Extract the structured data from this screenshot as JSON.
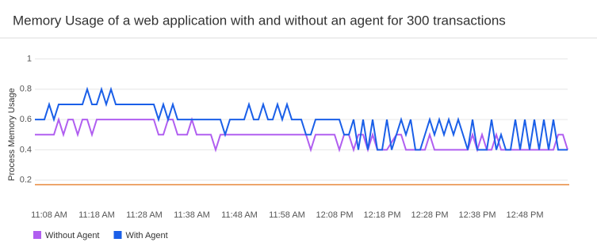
{
  "chart_data": {
    "type": "line",
    "title": "Memory Usage of a web application with and without an agent for 300 transactions",
    "y_label": "Process Memory Usage",
    "x": [
      "11:05 AM",
      "11:06 AM",
      "11:07 AM",
      "11:08 AM",
      "11:09 AM",
      "11:10 AM",
      "11:11 AM",
      "11:12 AM",
      "11:13 AM",
      "11:14 AM",
      "11:15 AM",
      "11:16 AM",
      "11:17 AM",
      "11:18 AM",
      "11:19 AM",
      "11:20 AM",
      "11:21 AM",
      "11:22 AM",
      "11:23 AM",
      "11:24 AM",
      "11:25 AM",
      "11:26 AM",
      "11:27 AM",
      "11:28 AM",
      "11:29 AM",
      "11:30 AM",
      "11:31 AM",
      "11:32 AM",
      "11:33 AM",
      "11:34 AM",
      "11:35 AM",
      "11:36 AM",
      "11:37 AM",
      "11:38 AM",
      "11:39 AM",
      "11:40 AM",
      "11:41 AM",
      "11:42 AM",
      "11:43 AM",
      "11:44 AM",
      "11:45 AM",
      "11:46 AM",
      "11:47 AM",
      "11:48 AM",
      "11:49 AM",
      "11:50 AM",
      "11:51 AM",
      "11:52 AM",
      "11:53 AM",
      "11:54 AM",
      "11:55 AM",
      "11:56 AM",
      "11:57 AM",
      "11:58 AM",
      "11:59 AM",
      "12:00 PM",
      "12:01 PM",
      "12:02 PM",
      "12:03 PM",
      "12:04 PM",
      "12:05 PM",
      "12:06 PM",
      "12:07 PM",
      "12:08 PM",
      "12:09 PM",
      "12:10 PM",
      "12:11 PM",
      "12:12 PM",
      "12:13 PM",
      "12:14 PM",
      "12:15 PM",
      "12:16 PM",
      "12:17 PM",
      "12:18 PM",
      "12:19 PM",
      "12:20 PM",
      "12:21 PM",
      "12:22 PM",
      "12:23 PM",
      "12:24 PM",
      "12:25 PM",
      "12:26 PM",
      "12:27 PM",
      "12:28 PM",
      "12:29 PM",
      "12:30 PM",
      "12:31 PM",
      "12:32 PM",
      "12:33 PM",
      "12:34 PM",
      "12:35 PM",
      "12:36 PM",
      "12:37 PM",
      "12:38 PM",
      "12:39 PM",
      "12:40 PM",
      "12:41 PM",
      "12:42 PM",
      "12:43 PM",
      "12:44 PM",
      "12:45 PM",
      "12:46 PM",
      "12:47 PM",
      "12:48 PM",
      "12:49 PM",
      "12:50 PM",
      "12:51 PM",
      "12:52 PM",
      "12:53 PM",
      "12:54 PM",
      "12:55 PM",
      "12:56 PM",
      "12:57 PM"
    ],
    "series": [
      {
        "name": "Without Agent",
        "color": "#b05ef0",
        "values": [
          0.5,
          0.5,
          0.5,
          0.5,
          0.5,
          0.6,
          0.5,
          0.6,
          0.6,
          0.5,
          0.6,
          0.6,
          0.5,
          0.6,
          0.6,
          0.6,
          0.6,
          0.6,
          0.6,
          0.6,
          0.6,
          0.6,
          0.6,
          0.6,
          0.6,
          0.6,
          0.5,
          0.5,
          0.6,
          0.6,
          0.5,
          0.5,
          0.5,
          0.6,
          0.5,
          0.5,
          0.5,
          0.5,
          0.4,
          0.5,
          0.5,
          0.5,
          0.5,
          0.5,
          0.5,
          0.5,
          0.5,
          0.5,
          0.5,
          0.5,
          0.5,
          0.5,
          0.5,
          0.5,
          0.5,
          0.5,
          0.5,
          0.5,
          0.4,
          0.5,
          0.5,
          0.5,
          0.5,
          0.5,
          0.4,
          0.5,
          0.5,
          0.4,
          0.5,
          0.5,
          0.4,
          0.5,
          0.4,
          0.4,
          0.4,
          0.45,
          0.5,
          0.5,
          0.4,
          0.4,
          0.4,
          0.4,
          0.4,
          0.5,
          0.4,
          0.4,
          0.4,
          0.4,
          0.4,
          0.4,
          0.4,
          0.4,
          0.5,
          0.4,
          0.5,
          0.4,
          0.4,
          0.5,
          0.4,
          0.4,
          0.4,
          0.4,
          0.4,
          0.4,
          0.4,
          0.4,
          0.4,
          0.4,
          0.4,
          0.4,
          0.5,
          0.5,
          0.4
        ]
      },
      {
        "name": "With Agent",
        "color": "#1a5fe8",
        "values": [
          0.6,
          0.6,
          0.6,
          0.7,
          0.6,
          0.7,
          0.7,
          0.7,
          0.7,
          0.7,
          0.7,
          0.8,
          0.7,
          0.7,
          0.8,
          0.7,
          0.8,
          0.7,
          0.7,
          0.7,
          0.7,
          0.7,
          0.7,
          0.7,
          0.7,
          0.7,
          0.6,
          0.7,
          0.6,
          0.7,
          0.6,
          0.6,
          0.6,
          0.6,
          0.6,
          0.6,
          0.6,
          0.6,
          0.6,
          0.6,
          0.5,
          0.6,
          0.6,
          0.6,
          0.6,
          0.7,
          0.6,
          0.6,
          0.7,
          0.6,
          0.6,
          0.7,
          0.6,
          0.7,
          0.6,
          0.6,
          0.6,
          0.5,
          0.5,
          0.6,
          0.6,
          0.6,
          0.6,
          0.6,
          0.6,
          0.5,
          0.5,
          0.6,
          0.4,
          0.6,
          0.4,
          0.6,
          0.4,
          0.4,
          0.6,
          0.4,
          0.5,
          0.6,
          0.5,
          0.6,
          0.4,
          0.4,
          0.5,
          0.6,
          0.5,
          0.6,
          0.5,
          0.6,
          0.5,
          0.6,
          0.5,
          0.4,
          0.6,
          0.4,
          0.4,
          0.4,
          0.6,
          0.4,
          0.5,
          0.4,
          0.4,
          0.6,
          0.4,
          0.6,
          0.4,
          0.6,
          0.4,
          0.6,
          0.4,
          0.6,
          0.4,
          0.4,
          0.4
        ]
      }
    ],
    "reference_line": {
      "value": 0.17,
      "color": "#e8873a"
    },
    "xlim": [
      "11:05 AM",
      "12:57 PM"
    ],
    "xticks": [
      "11:08 AM",
      "11:18 AM",
      "11:28 AM",
      "11:38 AM",
      "11:48 AM",
      "11:58 AM",
      "12:08 PM",
      "12:18 PM",
      "12:28 PM",
      "12:38 PM",
      "12:48 PM"
    ],
    "ylim": [
      0,
      1
    ],
    "yticks": [
      0.2,
      0.4,
      0.6,
      0.8,
      1
    ],
    "grid": true,
    "legend": "bottom-left"
  }
}
